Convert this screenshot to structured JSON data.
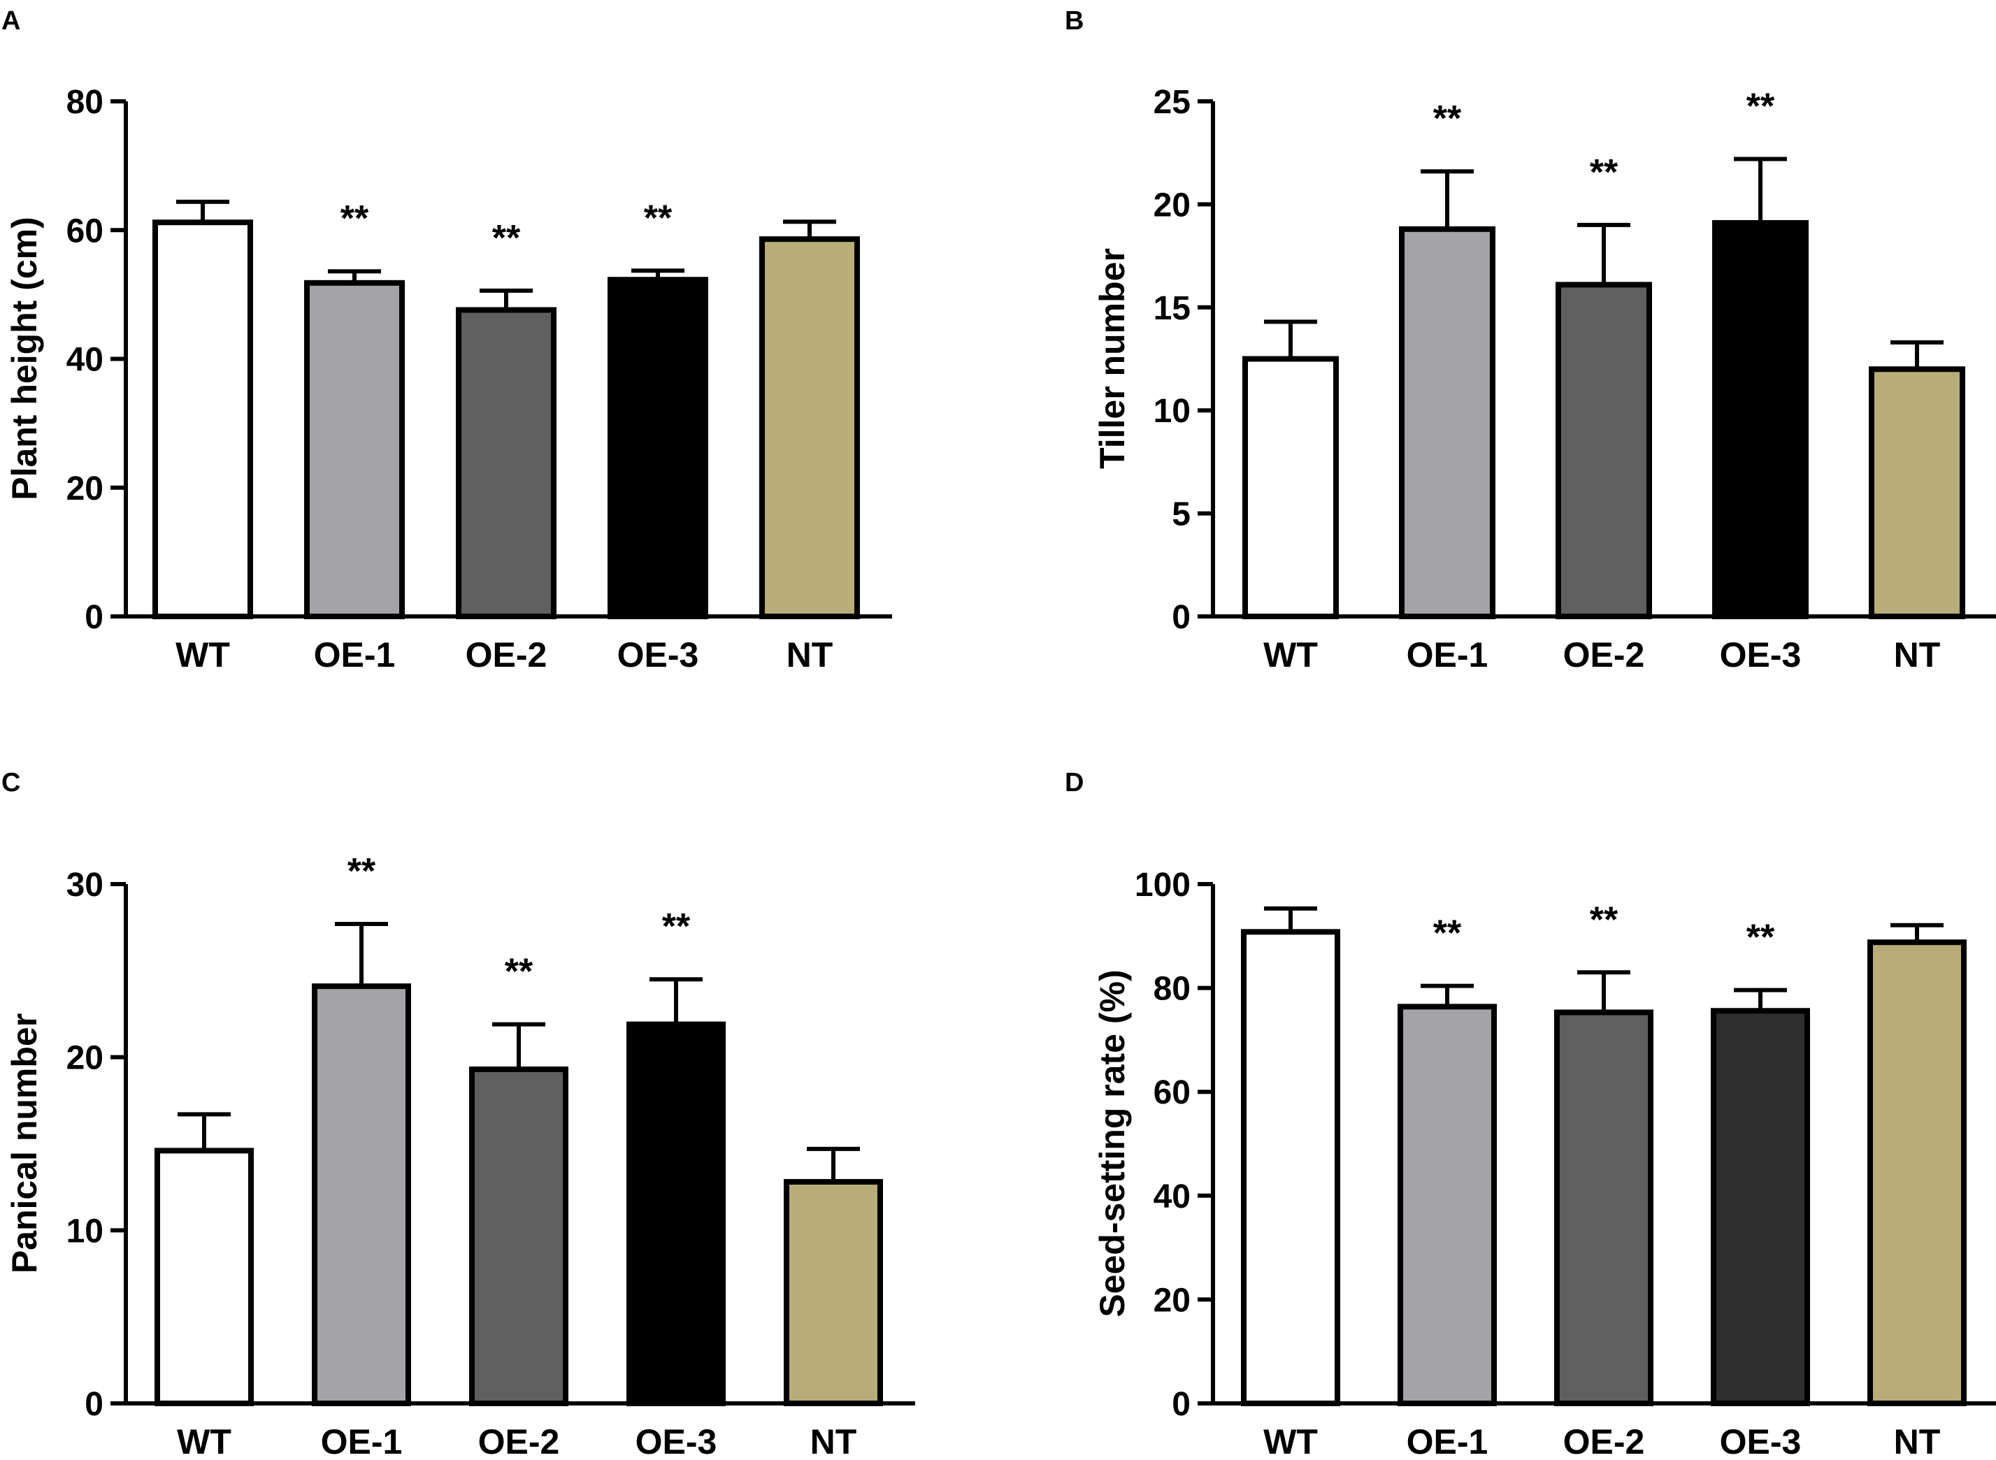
{
  "colors": {
    "WT": "#ffffff",
    "OE-1": "#a3a3a8",
    "OE-2": "#5f5f5f",
    "OE-3": "#000000",
    "NT": "#b8ad78",
    "OE-3_panel_D": "#2e2e2e",
    "axis": "#000000"
  },
  "chart_data": [
    {
      "panel": "A",
      "type": "bar",
      "ylabel": "Plant height (cm)",
      "ylim": [
        0,
        80
      ],
      "yticks": [
        "0",
        "20",
        "40",
        "60",
        "80"
      ],
      "categories": [
        "WT",
        "OE-1",
        "OE-2",
        "OE-3",
        "NT"
      ],
      "values": [
        61.2,
        51.8,
        47.6,
        52.3,
        58.6
      ],
      "errors": [
        3.2,
        1.8,
        3.0,
        1.4,
        2.7
      ],
      "annotations": [
        "",
        "**",
        "**",
        "**",
        ""
      ]
    },
    {
      "panel": "B",
      "type": "bar",
      "ylabel": "Tiller number",
      "ylim": [
        0,
        25
      ],
      "yticks": [
        "0",
        "5",
        "10",
        "15",
        "20",
        "25"
      ],
      "categories": [
        "WT",
        "OE-1",
        "OE-2",
        "OE-3",
        "NT"
      ],
      "values": [
        12.5,
        18.8,
        16.1,
        19.1,
        12.0
      ],
      "errors": [
        1.8,
        2.8,
        2.9,
        3.1,
        1.3
      ],
      "annotations": [
        "",
        "**",
        "**",
        "**",
        ""
      ]
    },
    {
      "panel": "C",
      "type": "bar",
      "ylabel": "Panical number",
      "ylim": [
        0,
        30
      ],
      "yticks": [
        "0",
        "10",
        "20",
        "30"
      ],
      "categories": [
        "WT",
        "OE-1",
        "OE-2",
        "OE-3",
        "NT"
      ],
      "values": [
        14.6,
        24.1,
        19.3,
        21.9,
        12.8
      ],
      "errors": [
        2.1,
        3.6,
        2.6,
        2.6,
        1.9
      ],
      "annotations": [
        "",
        "**",
        "**",
        "**",
        ""
      ]
    },
    {
      "panel": "D",
      "type": "bar",
      "ylabel": "Seed-setting rate (%)",
      "ylim": [
        0,
        100
      ],
      "yticks": [
        "0",
        "20",
        "40",
        "60",
        "80",
        "100"
      ],
      "categories": [
        "WT",
        "OE-1",
        "OE-2",
        "OE-3",
        "NT"
      ],
      "values": [
        90.8,
        76.4,
        75.3,
        75.6,
        88.8
      ],
      "errors": [
        4.5,
        4.0,
        7.7,
        4.0,
        3.3
      ],
      "annotations": [
        "",
        "**",
        "**",
        "**",
        ""
      ]
    }
  ]
}
